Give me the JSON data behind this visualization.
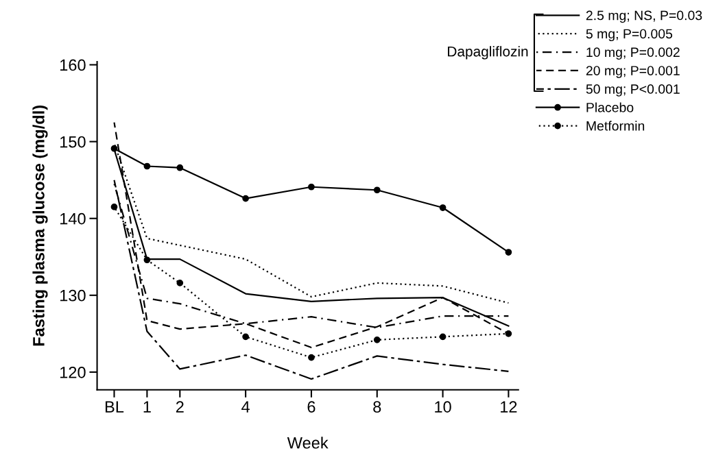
{
  "chart_data": {
    "type": "line",
    "xlabel": "Week",
    "ylabel": "Fasting plasma glucose (mg/dl)",
    "x": [
      0,
      1,
      2,
      4,
      6,
      8,
      10,
      12
    ],
    "xlim": [
      -0.52,
      12.3
    ],
    "xticks": [
      {
        "value": 0,
        "label": "BL"
      },
      1,
      2,
      4,
      6,
      8,
      10,
      12
    ],
    "ylim": [
      117.7,
      160.4
    ],
    "yticks": [
      120,
      130,
      140,
      150,
      160
    ],
    "grid": false,
    "legend": "top right",
    "annotations": [
      "Dapagliflozin"
    ],
    "series": [
      {
        "name": "2.5 mg; NS, P=0.03",
        "color": "#000000",
        "line_style": "solid",
        "marker": "none",
        "values": [
          149.0,
          134.7,
          134.7,
          130.2,
          129.2,
          129.6,
          129.7,
          126.0
        ]
      },
      {
        "name": "5 mg; P=0.005",
        "color": "#000000",
        "line_style": "dotted",
        "marker": "none",
        "values": [
          149.8,
          137.4,
          136.5,
          134.7,
          129.8,
          131.6,
          131.2,
          129.0
        ]
      },
      {
        "name": "10 mg; P=0.002",
        "color": "#000000",
        "line_style": "dashdot",
        "marker": "none",
        "values": [
          144.5,
          129.6,
          128.9,
          126.3,
          127.2,
          125.8,
          127.3,
          127.3
        ]
      },
      {
        "name": "20 mg; P=0.001",
        "color": "#000000",
        "line_style": "dashed",
        "marker": "none",
        "values": [
          152.5,
          126.7,
          125.6,
          126.3,
          123.2,
          125.9,
          129.7,
          125.0
        ]
      },
      {
        "name": "50 mg; P<0.001",
        "color": "#000000",
        "line_style": "longdashdot",
        "marker": "none",
        "values": [
          145.0,
          125.3,
          120.4,
          122.2,
          119.1,
          122.1,
          121.0,
          120.1
        ]
      },
      {
        "name": "Placebo",
        "color": "#000000",
        "line_style": "solid",
        "marker": "circle",
        "values": [
          149.1,
          146.8,
          146.6,
          142.6,
          144.1,
          143.7,
          141.4,
          135.6
        ]
      },
      {
        "name": "Metformin",
        "color": "#000000",
        "line_style": "dotted",
        "marker": "circle",
        "values": [
          141.5,
          134.6,
          131.6,
          124.6,
          121.9,
          124.2,
          124.6,
          125.0
        ]
      }
    ]
  }
}
